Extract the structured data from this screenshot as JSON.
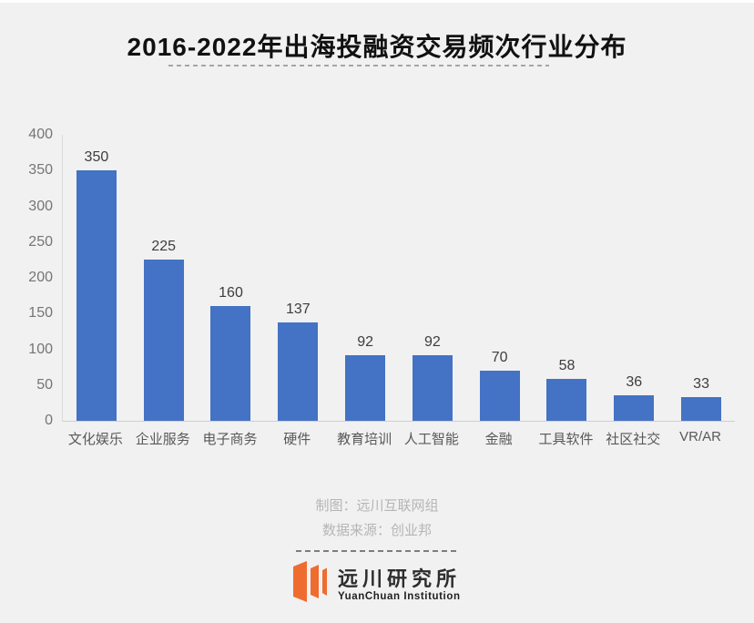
{
  "header": {
    "title": "2016-2022年出海投融资交易频次行业分布"
  },
  "chart_data": {
    "type": "bar",
    "title": "2016-2022年出海投融资交易频次行业分布",
    "categories": [
      "文化娱乐",
      "企业服务",
      "电子商务",
      "硬件",
      "教育培训",
      "人工智能",
      "金融",
      "工具软件",
      "社区社交",
      "VR/AR"
    ],
    "values": [
      350,
      225,
      160,
      137,
      92,
      92,
      70,
      58,
      36,
      33
    ],
    "xlabel": "",
    "ylabel": "",
    "ylim": [
      0,
      400
    ],
    "yticks": [
      0,
      50,
      100,
      150,
      200,
      250,
      300,
      350,
      400
    ],
    "grid": false,
    "legend": "none",
    "value_labels_shown": true,
    "bar_color": "#4472c4"
  },
  "footer": {
    "credit_line1": "制图：远川互联网组",
    "credit_line2": "数据来源：创业邦"
  },
  "logo": {
    "cn_name": "远川研究所",
    "en_name": "YuanChuan Institution",
    "icon": "three-orange-panels-icon",
    "accent_color": "#ef6c30"
  },
  "colors": {
    "background": "#f1f1f1",
    "bar": "#4472c4",
    "value_label": "#3d3d3d",
    "tick_label": "#757575",
    "category_label": "#595959",
    "axis_line": "#d6d6d6",
    "footer_text": "#b5b5b5",
    "title_text": "#111111"
  }
}
